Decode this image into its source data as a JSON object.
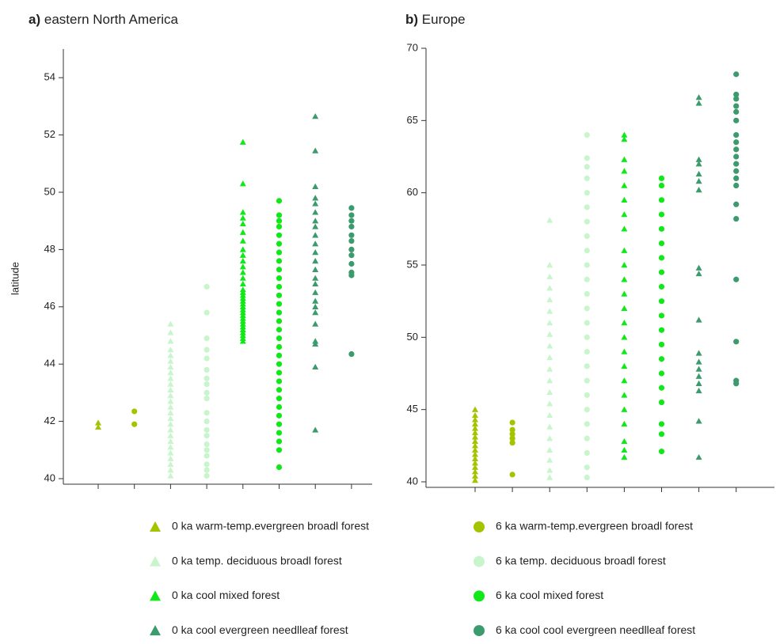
{
  "chart_data": [
    {
      "type": "strip",
      "panel_label": "a)",
      "title": "eastern North America",
      "y_label": "latitude",
      "ylim": [
        40,
        55
      ],
      "yticks": [
        40,
        42,
        44,
        46,
        48,
        50,
        52,
        54
      ],
      "series": [
        {
          "name": "0 ka warm-temp.evergreen broadl forest",
          "color": "#a4c400",
          "marker": "triangle",
          "values": [
            41.8,
            41.95
          ]
        },
        {
          "name": "6 ka warm-temp.evergreen broadl forest",
          "color": "#a4c400",
          "marker": "circle",
          "values": [
            41.9,
            42.35
          ]
        },
        {
          "name": "0 ka temp. deciduous broadl forest",
          "color": "#c9f5cc",
          "marker": "triangle",
          "values": [
            40.1,
            40.3,
            40.5,
            40.7,
            40.9,
            41.1,
            41.3,
            41.5,
            41.7,
            41.9,
            42.1,
            42.3,
            42.5,
            42.7,
            42.9,
            43.1,
            43.3,
            43.5,
            43.7,
            43.9,
            44.1,
            44.3,
            44.5,
            44.8,
            45.1,
            45.4
          ]
        },
        {
          "name": "6 ka temp. deciduous broadl forest",
          "color": "#c9f5cc",
          "marker": "circle",
          "values": [
            40.1,
            40.3,
            40.5,
            40.8,
            41.0,
            41.2,
            41.5,
            41.7,
            42.0,
            42.3,
            42.8,
            43.0,
            43.3,
            43.5,
            43.8,
            44.2,
            44.5,
            44.9,
            45.8,
            46.7
          ]
        },
        {
          "name": "0 ka cool mixed forest",
          "color": "#11e81a",
          "marker": "triangle",
          "values": [
            44.8,
            44.9,
            45.0,
            45.1,
            45.2,
            45.3,
            45.4,
            45.5,
            45.6,
            45.7,
            45.8,
            45.9,
            46.0,
            46.1,
            46.2,
            46.3,
            46.4,
            46.5,
            46.6,
            46.8,
            47.0,
            47.2,
            47.4,
            47.6,
            47.8,
            48.0,
            48.3,
            48.6,
            48.9,
            49.1,
            49.3,
            50.3,
            51.75
          ]
        },
        {
          "name": "6 ka cool mixed forest",
          "color": "#11e81a",
          "marker": "circle",
          "values": [
            40.4,
            41.0,
            41.3,
            41.6,
            41.9,
            42.2,
            42.5,
            42.8,
            43.1,
            43.4,
            43.7,
            44.0,
            44.3,
            44.6,
            44.9,
            45.2,
            45.5,
            45.8,
            46.1,
            46.4,
            46.7,
            47.0,
            47.3,
            47.6,
            47.9,
            48.2,
            48.5,
            48.8,
            49.0,
            49.2,
            49.7
          ]
        },
        {
          "name": "0 ka cool evergreen needlleaf forest",
          "color": "#3b9b6c",
          "marker": "triangle",
          "values": [
            41.7,
            43.9,
            44.7,
            44.8,
            45.4,
            45.8,
            46.0,
            46.2,
            46.5,
            46.8,
            47.0,
            47.3,
            47.6,
            47.9,
            48.2,
            48.5,
            48.8,
            49.0,
            49.3,
            49.6,
            49.8,
            50.2,
            51.45,
            52.65
          ]
        },
        {
          "name": "6 ka cool cool evergreen needlleaf forest",
          "color": "#3b9b6c",
          "marker": "circle",
          "values": [
            44.35,
            47.1,
            47.2,
            47.5,
            47.8,
            48.0,
            48.3,
            48.5,
            48.8,
            49.0,
            49.2,
            49.45
          ]
        }
      ]
    },
    {
      "type": "strip",
      "panel_label": "b)",
      "title": "Europe",
      "ylim": [
        40,
        70
      ],
      "yticks": [
        40,
        45,
        50,
        55,
        60,
        65,
        70
      ],
      "series": [
        {
          "values": [
            40.1,
            40.4,
            40.7,
            41.0,
            41.3,
            41.6,
            41.9,
            42.2,
            42.5,
            42.8,
            43.1,
            43.4,
            43.7,
            44.0,
            44.3,
            44.6,
            45.0
          ]
        },
        {
          "values": [
            40.5,
            42.7,
            43.0,
            43.3,
            43.6,
            44.1
          ]
        },
        {
          "values": [
            40.3,
            40.8,
            41.5,
            42.2,
            43.0,
            43.8,
            44.6,
            45.4,
            46.2,
            47.0,
            47.8,
            48.6,
            49.4,
            50.2,
            51.0,
            51.8,
            52.6,
            53.4,
            54.2,
            55.0,
            58.1
          ]
        },
        {
          "values": [
            40.3,
            41.0,
            42.0,
            43.0,
            44.0,
            45.0,
            46.0,
            47.0,
            48.0,
            49.0,
            50.0,
            51.0,
            52.0,
            53.0,
            54.0,
            55.0,
            56.0,
            57.0,
            58.0,
            59.0,
            60.0,
            61.0,
            61.8,
            62.4,
            64.0
          ]
        },
        {
          "values": [
            41.7,
            42.2,
            42.8,
            44.0,
            45.0,
            46.0,
            47.0,
            48.0,
            49.0,
            50.0,
            51.0,
            52.0,
            53.0,
            54.0,
            55.0,
            56.0,
            57.5,
            58.5,
            59.5,
            60.5,
            61.5,
            62.3,
            63.7,
            64.0
          ]
        },
        {
          "values": [
            42.1,
            43.3,
            44.0,
            45.5,
            46.5,
            47.5,
            48.5,
            49.5,
            50.5,
            51.5,
            52.5,
            53.5,
            54.5,
            55.5,
            56.5,
            57.5,
            58.5,
            59.5,
            60.5,
            61.0
          ]
        },
        {
          "values": [
            41.7,
            44.2,
            46.3,
            46.8,
            47.3,
            47.8,
            48.3,
            48.9,
            51.2,
            54.4,
            54.8,
            60.2,
            60.8,
            61.3,
            62.0,
            62.3,
            66.2,
            66.6
          ]
        },
        {
          "values": [
            46.8,
            47.0,
            49.7,
            54.0,
            58.2,
            59.2,
            60.5,
            61.0,
            61.5,
            62.0,
            62.5,
            63.0,
            63.5,
            64.0,
            65.0,
            65.6,
            66.0,
            66.5,
            66.8,
            68.2
          ]
        }
      ]
    }
  ]
}
